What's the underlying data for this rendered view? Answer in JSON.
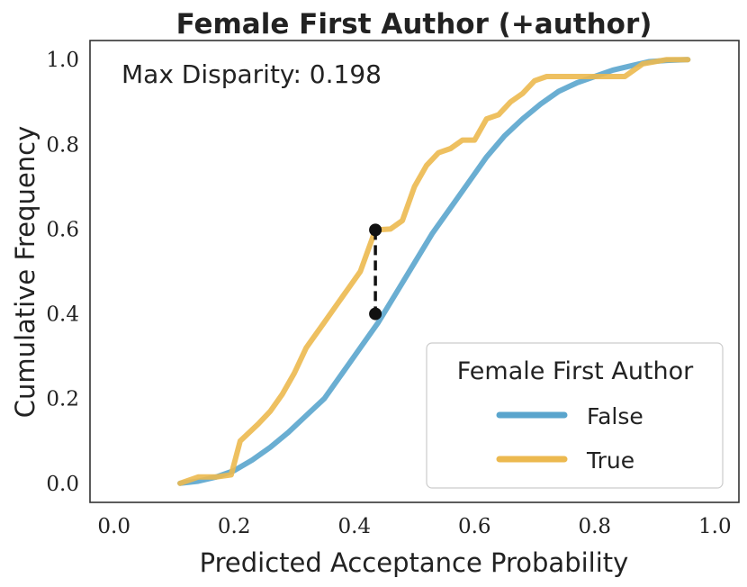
{
  "chart_data": {
    "type": "line",
    "title": "Female First Author (+author)",
    "xlabel": "Predicted Acceptance Probability",
    "ylabel": "Cumulative Frequency",
    "xlim": [
      -0.04,
      1.04
    ],
    "ylim": [
      -0.045,
      1.045
    ],
    "xticks": [
      0.0,
      0.2,
      0.4,
      0.6,
      0.8,
      1.0
    ],
    "xtick_labels": [
      "0.0",
      "0.2",
      "0.4",
      "0.6",
      "0.8",
      "1.0"
    ],
    "yticks": [
      0.0,
      0.2,
      0.4,
      0.6,
      0.8,
      1.0
    ],
    "ytick_labels": [
      "0.0",
      "0.2",
      "0.4",
      "0.6",
      "0.8",
      "1.0"
    ],
    "grid": false,
    "annotation": "Max Disparity: 0.198",
    "disparity": {
      "x": 0.435,
      "y_low": 0.4,
      "y_high": 0.598
    },
    "legend": {
      "title": "Female First Author",
      "position": "lower-right"
    },
    "series": [
      {
        "name": "False",
        "color": "#5aa5cd",
        "x": [
          0.11,
          0.14,
          0.17,
          0.2,
          0.23,
          0.26,
          0.29,
          0.32,
          0.35,
          0.38,
          0.41,
          0.44,
          0.47,
          0.5,
          0.53,
          0.56,
          0.59,
          0.62,
          0.65,
          0.68,
          0.71,
          0.74,
          0.77,
          0.8,
          0.83,
          0.86,
          0.89,
          0.92,
          0.955
        ],
        "y": [
          0.0,
          0.005,
          0.015,
          0.03,
          0.055,
          0.085,
          0.12,
          0.16,
          0.2,
          0.26,
          0.32,
          0.38,
          0.45,
          0.52,
          0.59,
          0.65,
          0.71,
          0.77,
          0.82,
          0.86,
          0.895,
          0.925,
          0.945,
          0.96,
          0.975,
          0.985,
          0.995,
          0.998,
          1.0
        ]
      },
      {
        "name": "True",
        "color": "#ecb94f",
        "x": [
          0.11,
          0.14,
          0.17,
          0.195,
          0.21,
          0.24,
          0.26,
          0.28,
          0.3,
          0.32,
          0.35,
          0.37,
          0.39,
          0.41,
          0.435,
          0.46,
          0.48,
          0.5,
          0.52,
          0.54,
          0.56,
          0.58,
          0.6,
          0.62,
          0.64,
          0.66,
          0.68,
          0.7,
          0.72,
          0.75,
          0.8,
          0.85,
          0.88,
          0.92,
          0.955
        ],
        "y": [
          0.0,
          0.015,
          0.015,
          0.02,
          0.1,
          0.14,
          0.17,
          0.21,
          0.26,
          0.32,
          0.38,
          0.42,
          0.46,
          0.5,
          0.598,
          0.6,
          0.62,
          0.7,
          0.75,
          0.78,
          0.79,
          0.81,
          0.81,
          0.86,
          0.87,
          0.9,
          0.92,
          0.95,
          0.96,
          0.96,
          0.96,
          0.96,
          0.99,
          1.0,
          1.0
        ]
      }
    ]
  }
}
